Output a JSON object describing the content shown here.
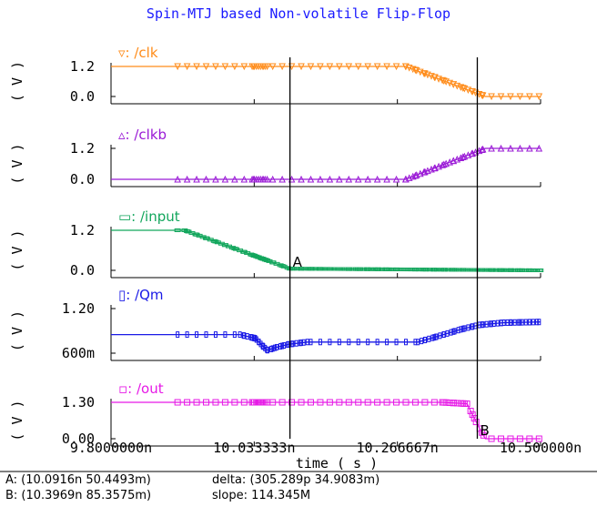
{
  "chart_data": {
    "type": "line",
    "title": "Spin-MTJ based Non-volatile Flip-Flop",
    "xlabel": "time ( s )",
    "xlim": [
      9.8e-09,
      1.05e-08
    ],
    "x_ticks": [
      "9.8000000n",
      "10.033333n",
      "10.266667n",
      "10.500000n"
    ],
    "grid": false,
    "panels": [
      {
        "name": "▿: /clk",
        "color": "#ff8c1a",
        "ylabel": "( V )",
        "y_ticks": [
          "1.2",
          "0.0"
        ],
        "ylim": [
          0,
          1.2
        ],
        "points": [
          [
            9.8e-09,
            1.2
          ],
          [
            1.028e-08,
            1.2
          ],
          [
            1.041e-08,
            0.0
          ],
          [
            1.05e-08,
            0.0
          ]
        ]
      },
      {
        "name": "▵: /clkb",
        "color": "#9a1ad6",
        "ylabel": "( V )",
        "y_ticks": [
          "1.2",
          "0.0"
        ],
        "ylim": [
          0,
          1.2
        ],
        "points": [
          [
            9.8e-09,
            0.0
          ],
          [
            1.028e-08,
            0.0
          ],
          [
            1.041e-08,
            1.2
          ],
          [
            1.05e-08,
            1.2
          ]
        ]
      },
      {
        "name": "▭: /input",
        "color": "#12a65c",
        "ylabel": "( V )",
        "y_ticks": [
          "1.2",
          "0.0"
        ],
        "ylim": [
          0,
          1.2
        ],
        "points": [
          [
            9.8e-09,
            1.2
          ],
          [
            9.92e-09,
            1.2
          ],
          [
            1.00916e-08,
            0.05
          ],
          [
            1.05e-08,
            0.0
          ]
        ]
      },
      {
        "name": "▯: /Qm",
        "color": "#1a1ae6",
        "ylabel": "( V )",
        "y_ticks": [
          "1.20",
          "600m"
        ],
        "ylim": [
          0.6,
          1.2
        ],
        "points": [
          [
            9.8e-09,
            0.85
          ],
          [
            1.001e-08,
            0.85
          ],
          [
            1.0035e-08,
            0.8
          ],
          [
            1.0048e-08,
            0.69
          ],
          [
            1.0055e-08,
            0.64
          ],
          [
            1.007e-08,
            0.68
          ],
          [
            1.009e-08,
            0.72
          ],
          [
            1.012e-08,
            0.75
          ],
          [
            1.03e-08,
            0.75
          ],
          [
            1.033e-08,
            0.82
          ],
          [
            1.037e-08,
            0.92
          ],
          [
            1.04e-08,
            0.98
          ],
          [
            1.044e-08,
            1.01
          ],
          [
            1.05e-08,
            1.02
          ]
        ]
      },
      {
        "name": "▫: /out",
        "color": "#e619e6",
        "ylabel": "( V )",
        "y_ticks": [
          "1.30",
          "0.00"
        ],
        "ylim": [
          0,
          1.3
        ],
        "points": [
          [
            9.8e-09,
            1.3
          ],
          [
            1.034e-08,
            1.3
          ],
          [
            1.038e-08,
            1.25
          ],
          [
            1.0395e-08,
            0.6
          ],
          [
            1.041e-08,
            0.0
          ],
          [
            1.05e-08,
            0.0
          ]
        ]
      }
    ],
    "cursors": [
      {
        "label": "A",
        "x": 1.00916e-08,
        "panel": 2
      },
      {
        "label": "B",
        "x": 1.03969e-08,
        "panel": 4
      }
    ]
  },
  "readouts": {
    "cursor_a": "A: (10.0916n 50.4493m)",
    "cursor_b": "B: (10.3969n 85.3575m)",
    "delta": "delta: (305.289p 34.9083m)",
    "slope": "slope: 114.345M"
  }
}
